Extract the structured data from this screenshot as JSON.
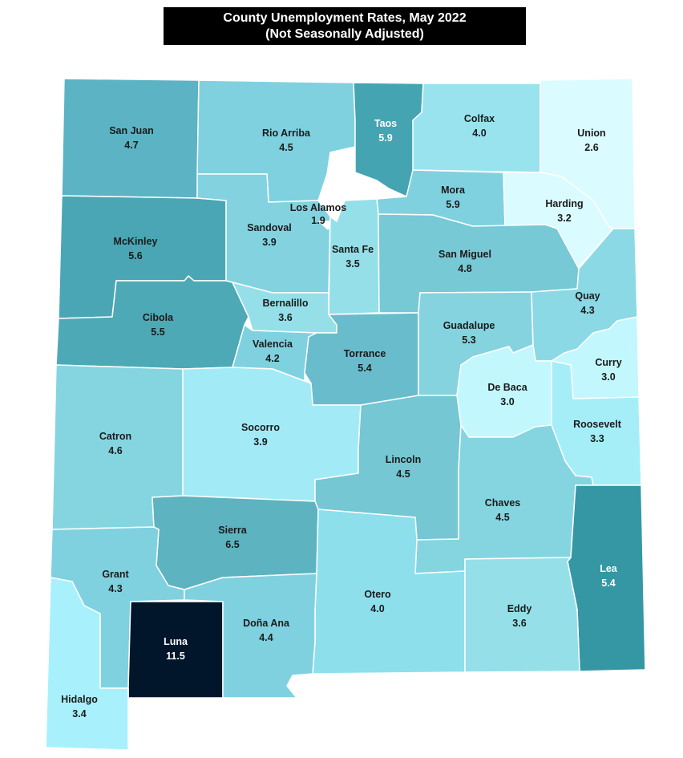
{
  "title": {
    "line1": "County Unemployment Rates, May 2022",
    "line2": "(Not Seasonally Adjusted)"
  },
  "chart_data": {
    "type": "choropleth",
    "title": "County Unemployment Rates, May 2022 (Not Seasonally Adjusted)",
    "counties": [
      {
        "id": "san-juan",
        "name": "San Juan",
        "rate": "4.7",
        "color": "#5bb3c4"
      },
      {
        "id": "rio-arriba",
        "name": "Rio Arriba",
        "rate": "4.5",
        "color": "#80d1df"
      },
      {
        "id": "taos",
        "name": "Taos",
        "rate": "5.9",
        "color": "#45a4b1"
      },
      {
        "id": "colfax",
        "name": "Colfax",
        "rate": "4.0",
        "color": "#98e3ee"
      },
      {
        "id": "union",
        "name": "Union",
        "rate": "2.6",
        "color": "#dafbff"
      },
      {
        "id": "mckinley",
        "name": "McKinley",
        "rate": "5.6",
        "color": "#4aa6b5"
      },
      {
        "id": "sandoval",
        "name": "Sandoval",
        "rate": "3.9",
        "color": "#82d2df"
      },
      {
        "id": "los-alamos",
        "name": "Los Alamos",
        "rate": "1.9",
        "color": "#ffffff"
      },
      {
        "id": "mora",
        "name": "Mora",
        "rate": "5.9",
        "color": "#80d1df"
      },
      {
        "id": "harding",
        "name": "Harding",
        "rate": "3.2",
        "color": "#dafbff"
      },
      {
        "id": "santa-fe",
        "name": "Santa Fe",
        "rate": "3.5",
        "color": "#95dfe9"
      },
      {
        "id": "san-miguel",
        "name": "San Miguel",
        "rate": "4.8",
        "color": "#77c9d6"
      },
      {
        "id": "cibola",
        "name": "Cibola",
        "rate": "5.5",
        "color": "#4ea9b6"
      },
      {
        "id": "bernalillo",
        "name": "Bernalillo",
        "rate": "3.6",
        "color": "#95dfe9"
      },
      {
        "id": "valencia",
        "name": "Valencia",
        "rate": "4.2",
        "color": "#80d1df"
      },
      {
        "id": "torrance",
        "name": "Torrance",
        "rate": "5.4",
        "color": "#69bccb"
      },
      {
        "id": "guadalupe",
        "name": "Guadalupe",
        "rate": "5.3",
        "color": "#85d3df"
      },
      {
        "id": "quay",
        "name": "Quay",
        "rate": "4.3",
        "color": "#8bd9e5"
      },
      {
        "id": "curry",
        "name": "Curry",
        "rate": "3.0",
        "color": "#c2f7fe"
      },
      {
        "id": "de-baca",
        "name": "De Baca",
        "rate": "3.0",
        "color": "#c2f7fe"
      },
      {
        "id": "roosevelt",
        "name": "Roosevelt",
        "rate": "3.3",
        "color": "#a5eef8"
      },
      {
        "id": "catron",
        "name": "Catron",
        "rate": "4.6",
        "color": "#85d5e1"
      },
      {
        "id": "socorro",
        "name": "Socorro",
        "rate": "3.9",
        "color": "#a2ebf6"
      },
      {
        "id": "lincoln",
        "name": "Lincoln",
        "rate": "4.5",
        "color": "#74c7d3"
      },
      {
        "id": "chaves",
        "name": "Chaves",
        "rate": "4.5",
        "color": "#85d5e1"
      },
      {
        "id": "sierra",
        "name": "Sierra",
        "rate": "6.5",
        "color": "#5eb3c0"
      },
      {
        "id": "lea",
        "name": "Lea",
        "rate": "5.4",
        "color": "#3597a4"
      },
      {
        "id": "grant",
        "name": "Grant",
        "rate": "4.3",
        "color": "#80d1df"
      },
      {
        "id": "otero",
        "name": "Otero",
        "rate": "4.0",
        "color": "#8ddfec"
      },
      {
        "id": "eddy",
        "name": "Eddy",
        "rate": "3.6",
        "color": "#95dfe9"
      },
      {
        "id": "luna",
        "name": "Luna",
        "rate": "11.5",
        "color": "#02162b"
      },
      {
        "id": "dona-ana",
        "name": "Doña Ana",
        "rate": "4.4",
        "color": "#80d1df"
      },
      {
        "id": "hidalgo",
        "name": "Hidalgo",
        "rate": "3.4",
        "color": "#a8f1fc"
      }
    ]
  }
}
